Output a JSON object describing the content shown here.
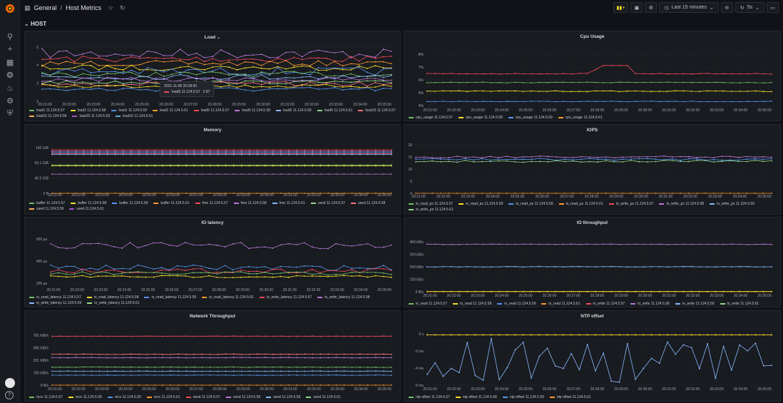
{
  "breadcrumb": {
    "folder": "General",
    "separator": "/",
    "dashboard": "Host Metrics"
  },
  "toolbar": {
    "time_range": "Last 15 minutes",
    "refresh": "5s",
    "graph_icon": "add-panel-icon"
  },
  "row": {
    "label": "HOST"
  },
  "colors": {
    "green": "#73bf69",
    "yellow": "#fade2a",
    "blue": "#5794f2",
    "orange": "#ff9830",
    "red": "#f2495c",
    "purple": "#b877d9",
    "light_green": "#96d98d",
    "light_blue": "#8ab8ff"
  },
  "x_ticks_a": [
    "20:21:00",
    "20:22:00",
    "20:23:00",
    "20:24:00",
    "20:25:00",
    "20:26:00",
    "20:27:00",
    "20:28:00",
    "20:29:00",
    "20:30:00",
    "20:31:00",
    "20:32:00",
    "20:33:00",
    "20:34:00",
    "20:35:00"
  ],
  "panels": {
    "load": {
      "title": "Load",
      "y_ticks": [
        "2",
        "3",
        "4",
        "5"
      ],
      "tooltip": {
        "time": "2021-11-08 20:28:00",
        "series": "load5 11.124.5.57",
        "value": "2.87"
      },
      "legend": [
        "load1 11.124.5.57",
        "load1 11.124.5.58",
        "load1 11.124.5.59",
        "load1 11.124.5.61",
        "load5 11.124.5.57",
        "load5 11.124.5.58",
        "load5 11.124.5.59",
        "load5 11.124.5.61",
        "load15 11.124.5.57",
        "load15 11.124.5.58",
        "load15 11.124.5.59",
        "load15 11.124.5.61"
      ]
    },
    "cpu": {
      "title": "Cpu Usage",
      "y_ticks": [
        "4%",
        "5%",
        "6%",
        "7%",
        "8%"
      ],
      "legend": [
        "cpu_usage 11.124.5.57",
        "cpu_usage 11.124.5.58",
        "cpu_usage 11.124.5.59",
        "cpu_usage 11.124.5.61"
      ]
    },
    "memory": {
      "title": "Memory",
      "y_ticks": [
        "0 B",
        "46.6 GiB",
        "93.1 GiB",
        "140 GiB"
      ],
      "legend": [
        "buffer 11.124.5.57",
        "buffer 11.124.5.58",
        "buffer 11.124.5.59",
        "buffer 11.124.5.61",
        "free 11.124.5.57",
        "free 11.124.5.58",
        "free 11.124.5.61",
        "used 11.124.5.57",
        "used 11.124.5.58",
        "used 11.124.5.59",
        "used 11.124.5.61"
      ]
    },
    "iops": {
      "title": "IOPS",
      "y_ticks": [
        "0",
        "5",
        "10",
        "15",
        "20"
      ],
      "legend": [
        "io_read_ps 11.124.5.57",
        "io_read_ps 11.124.5.58",
        "io_read_ps 11.124.5.59",
        "io_read_ps 11.124.5.61",
        "io_write_ps 11.124.5.57",
        "io_write_ps 11.124.5.58",
        "io_write_ps 11.124.5.59",
        "io_write_ps 11.124.5.61"
      ]
    },
    "io_latency": {
      "title": "IO latency",
      "y_ticks": [
        "200 µs",
        "400 µs",
        "600 µs"
      ],
      "legend": [
        "io_read_latency 11.124.5.57",
        "io_read_latency 11.124.5.58",
        "io_read_latency 11.124.5.59",
        "io_read_latency 11.124.5.61",
        "io_write_latency 11.124.5.57",
        "io_write_latency 11.124.5.58",
        "io_write_latency 11.124.5.59",
        "io_write_latency 11.124.5.61"
      ]
    },
    "io_throughput": {
      "title": "IO throughput",
      "y_ticks": [
        "0 B/s",
        "100 kB/s",
        "200 kB/s",
        "300 kB/s",
        "400 kB/s"
      ],
      "legend": [
        "io_read 11.124.5.57",
        "io_read 11.124.5.58",
        "io_read 11.124.5.59",
        "io_read 11.124.5.61",
        "io_write 11.124.5.57",
        "io_write 11.124.5.58",
        "io_write 11.124.5.59",
        "io_write 11.124.5.61"
      ]
    },
    "network": {
      "title": "Network Throughput",
      "y_ticks": [
        "0 B/s",
        "195 KiB/s",
        "391 KiB/s",
        "586 KiB/s",
        "781 KiB/s"
      ],
      "legend": [
        "recv 11.124.5.57",
        "recv 11.124.5.58",
        "recv 11.124.5.59",
        "recv 11.124.5.61",
        "send 11.124.5.57",
        "send 11.124.5.58",
        "send 11.124.5.59",
        "send 11.124.5.61"
      ]
    },
    "ntp": {
      "title": "NTP offset",
      "y_ticks": [
        "-6 ms",
        "-4 ms",
        "-2 ms",
        "0 s"
      ],
      "legend": [
        "ntp offset 11.124.5.57",
        "ntp offset 11.124.5.58",
        "ntp offset 11.124.5.59",
        "ntp offset 11.124.5.61"
      ]
    }
  }
}
